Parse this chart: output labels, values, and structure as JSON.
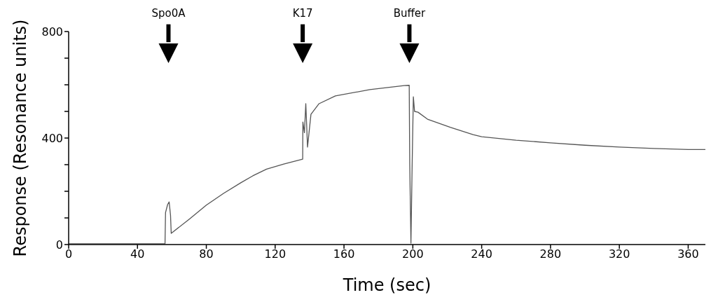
{
  "chart_data": {
    "type": "line",
    "xlabel": "Time (sec)",
    "ylabel": "Response (Resonance units)",
    "x": [
      0,
      20,
      40,
      56,
      56.3,
      57.5,
      58.4,
      59.2,
      59.6,
      70,
      80,
      90,
      100,
      107,
      115,
      125,
      136,
      136.1,
      137,
      137.8,
      138.3,
      138.8,
      140.8,
      145.5,
      155,
      175,
      195,
      197.9,
      198.2,
      198.9,
      199.6,
      200.3,
      201,
      203,
      208.5,
      222,
      235,
      240,
      260,
      280,
      300,
      320,
      340,
      360,
      370
    ],
    "series": [
      {
        "color": "#555555",
        "values": [
          3,
          3,
          3,
          3,
          120,
          150,
          160,
          110,
          42,
          95,
          148,
          192,
          232,
          258,
          283,
          302,
          321,
          460,
          420,
          529,
          450,
          366,
          489,
          529,
          558,
          582,
          597,
          598,
          300,
          5,
          300,
          555,
          500,
          497,
          471,
          440,
          413,
          405,
          392,
          382,
          373,
          366,
          361,
          357,
          357
        ]
      }
    ],
    "xlim": [
      0,
      370
    ],
    "ylim": [
      0,
      800
    ],
    "xticks": [
      0,
      40,
      80,
      120,
      160,
      200,
      240,
      280,
      320,
      360
    ],
    "yticks": [
      0,
      {
        "value": 100,
        "label": null
      },
      {
        "value": 200,
        "label": null
      },
      {
        "value": 300,
        "label": null
      },
      400,
      {
        "value": 500,
        "label": null
      },
      {
        "value": 600,
        "label": null
      },
      {
        "value": 700,
        "label": null
      },
      800
    ],
    "ref_lines": [
      {
        "axis": "x",
        "value": 58,
        "label": "Spo0A"
      },
      {
        "axis": "x",
        "value": 136,
        "label": "K17"
      },
      {
        "axis": "x",
        "value": 198,
        "label": "Buffer"
      }
    ],
    "grid": false,
    "legend": false,
    "marker": "none",
    "line_style": "solid"
  }
}
